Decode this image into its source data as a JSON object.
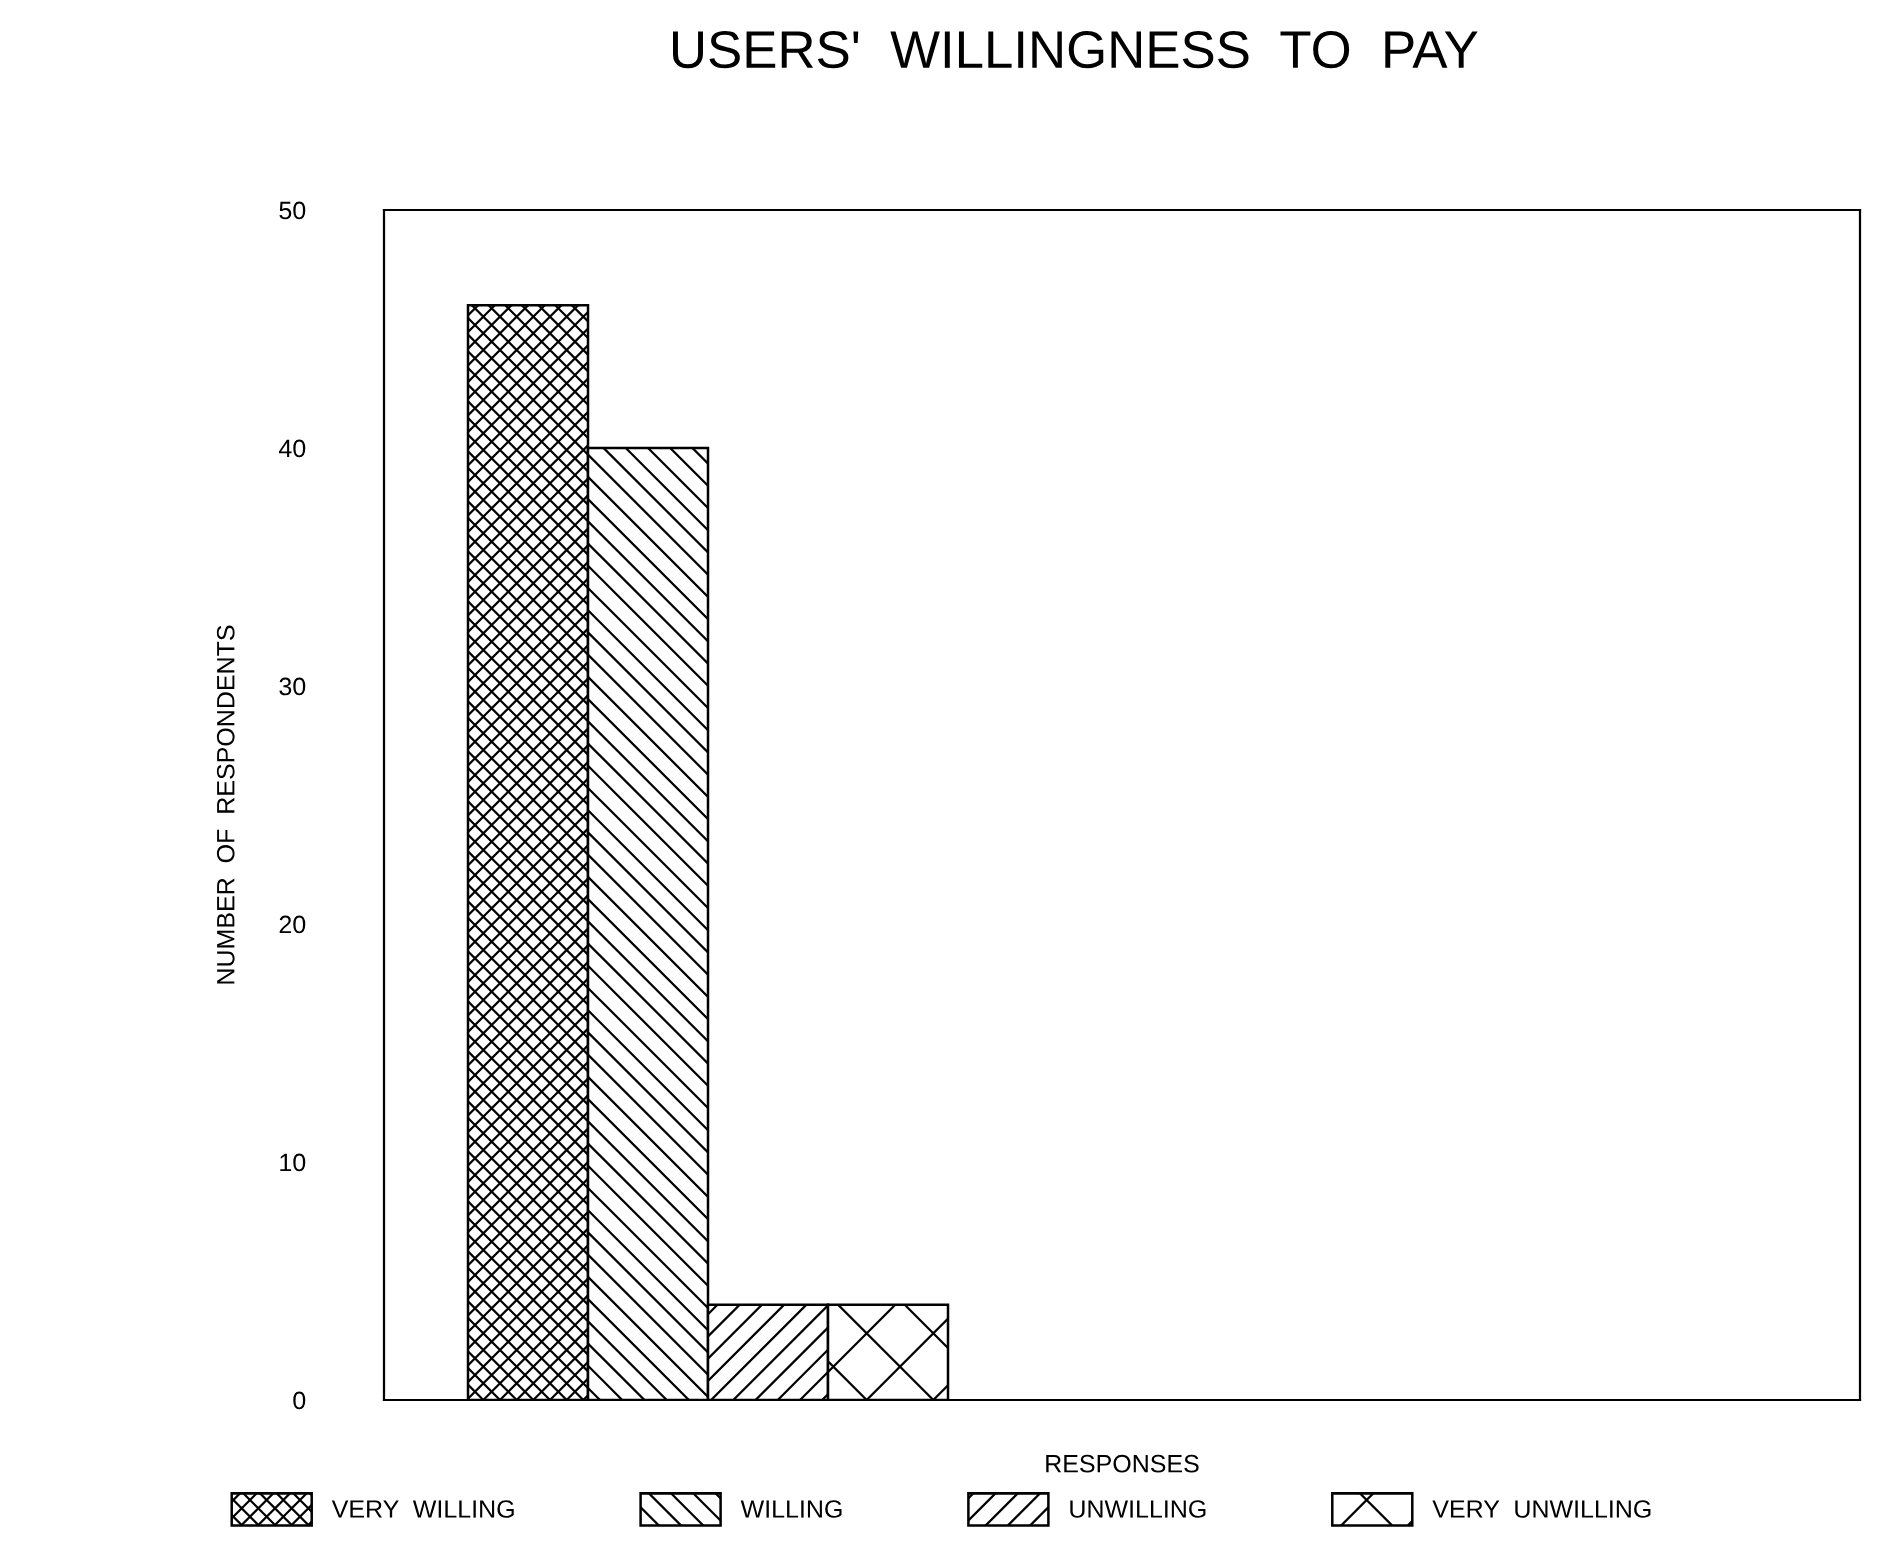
{
  "chart_data": {
    "type": "bar",
    "title": "USERS'  WILLINGNESS  TO  PAY",
    "xlabel": "RESPONSES",
    "ylabel": "NUMBER  OF  RESPONDENTS",
    "categories": [
      null
    ],
    "series": [
      {
        "name": "VERY  WILLING",
        "color": "#000000",
        "values": [
          46
        ]
      },
      {
        "name": "WILLING",
        "color": "#000000",
        "values": [
          40
        ]
      },
      {
        "name": "UNWILLING",
        "color": "#000000",
        "values": [
          4
        ]
      },
      {
        "name": "VERY  UNWILLING",
        "color": "#000000",
        "values": [
          4
        ]
      }
    ],
    "ylim": [
      0,
      50
    ],
    "yticks": [
      0,
      10,
      20,
      30,
      40,
      50
    ],
    "grid": false,
    "legend": "bottom"
  }
}
